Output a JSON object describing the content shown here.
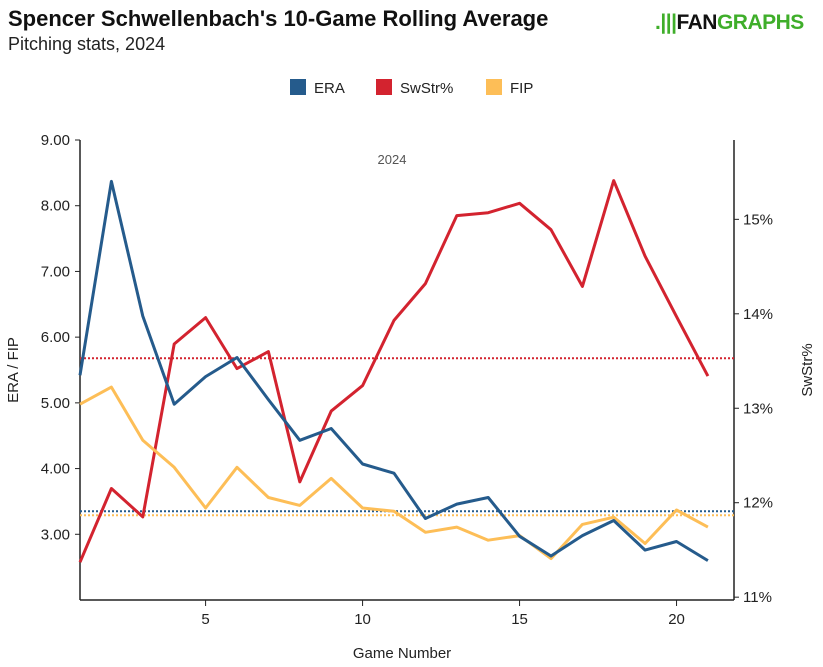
{
  "title": "Spencer Schwellenbach's 10-Game Rolling Average",
  "subtitle": "Pitching stats, 2024",
  "logo": "FANGRAPHS",
  "chart_data": {
    "type": "line",
    "annotation": "2024",
    "xlabel": "Game Number",
    "ylabel_left": "ERA / FIP",
    "ylabel_right": "SwStr%",
    "xlim": [
      1,
      21.83
    ],
    "ylim_left": [
      2,
      9
    ],
    "ylim_right": [
      10.97,
      15.84
    ],
    "x_ticks": [
      5,
      10,
      15,
      20
    ],
    "y_left_ticks": [
      "3.00",
      "4.00",
      "5.00",
      "6.00",
      "7.00",
      "8.00",
      "9.00"
    ],
    "y_right_ticks": [
      "11%",
      "12%",
      "13%",
      "14%",
      "15%"
    ],
    "legend": {
      "placement": "top-center",
      "entries": [
        "ERA",
        "SwStr%",
        "FIP"
      ]
    },
    "x": [
      1,
      2,
      3,
      4,
      5,
      6,
      7,
      8,
      9,
      10,
      11,
      12,
      13,
      14,
      15,
      16,
      17,
      18,
      19,
      20,
      21
    ],
    "series": [
      {
        "name": "ERA",
        "axis": "left",
        "color": "#255b8c",
        "values": [
          5.42,
          8.37,
          6.32,
          4.98,
          5.4,
          5.69,
          5.05,
          4.43,
          4.61,
          4.07,
          3.93,
          3.24,
          3.46,
          3.56,
          2.97,
          2.67,
          2.98,
          3.21,
          2.76,
          2.89,
          2.6
        ],
        "reference": 3.35
      },
      {
        "name": "SwStr%",
        "axis": "right",
        "color": "#d3232f",
        "values": [
          11.37,
          12.15,
          11.85,
          13.68,
          13.96,
          13.42,
          13.6,
          12.22,
          12.97,
          13.24,
          13.93,
          14.32,
          15.04,
          15.07,
          15.17,
          14.89,
          14.29,
          15.41,
          14.61,
          13.97,
          13.34
        ],
        "reference": 13.53
      },
      {
        "name": "FIP",
        "axis": "left",
        "color": "#fdbe57",
        "values": [
          4.98,
          5.24,
          4.43,
          4.02,
          3.4,
          4.02,
          3.56,
          3.44,
          3.85,
          3.4,
          3.35,
          3.03,
          3.11,
          2.91,
          2.98,
          2.63,
          3.15,
          3.26,
          2.86,
          3.37,
          3.11
        ],
        "reference": 3.29
      }
    ]
  }
}
